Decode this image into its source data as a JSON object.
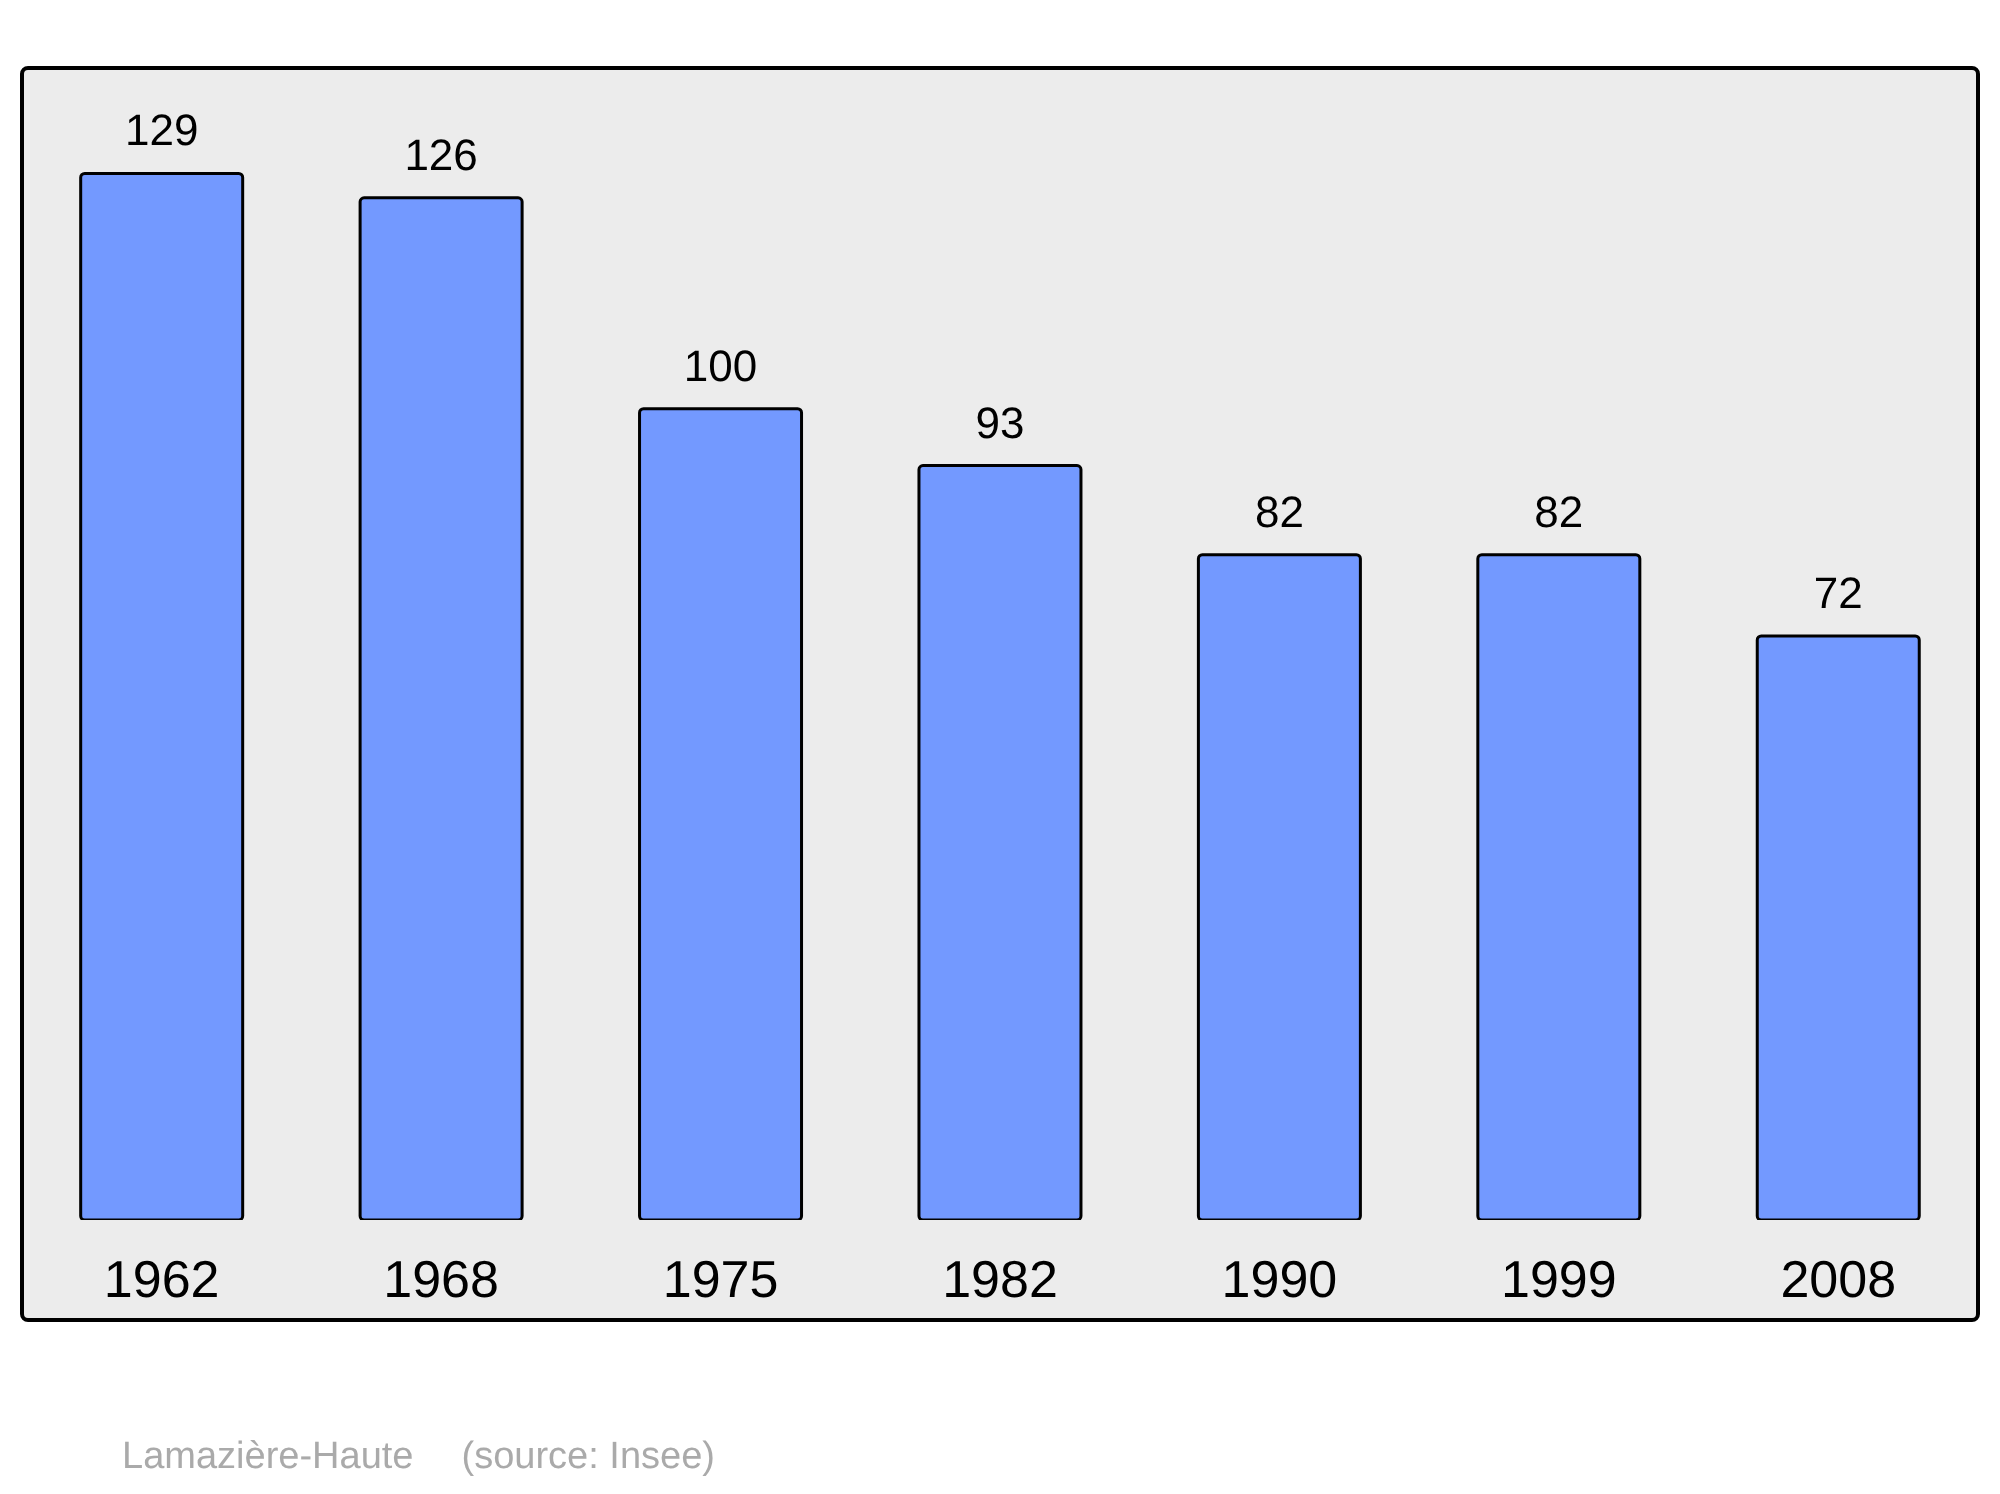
{
  "chart_data": {
    "type": "bar",
    "categories": [
      "1962",
      "1968",
      "1975",
      "1982",
      "1990",
      "1999",
      "2008"
    ],
    "values": [
      129,
      126,
      100,
      93,
      82,
      82,
      72
    ],
    "color": "#7399ff",
    "ylim": [
      0,
      142
    ],
    "data_labels": true,
    "annotations": [
      "Lamazière-Haute",
      "(source: Insee)"
    ]
  }
}
